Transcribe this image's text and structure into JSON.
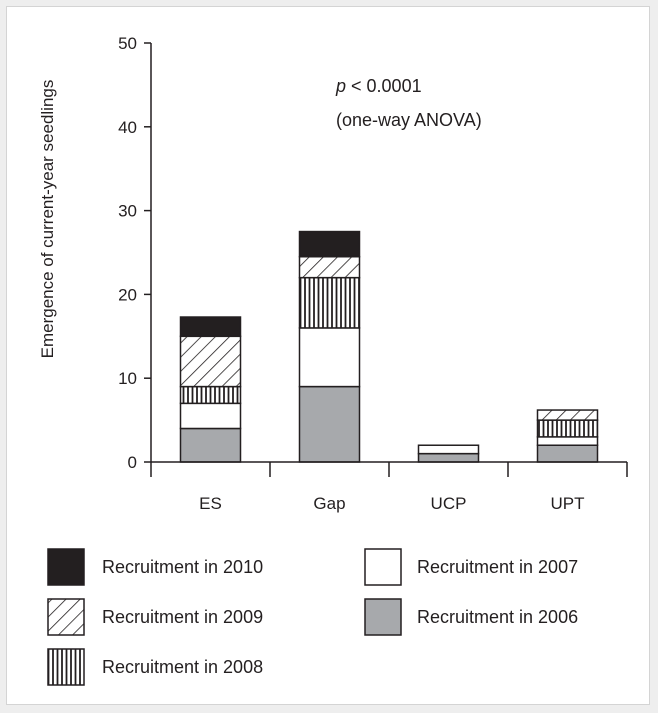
{
  "chart_data": {
    "type": "bar",
    "stacked": true,
    "categories": [
      "ES",
      "Gap",
      "UCP",
      "UPT"
    ],
    "ylabel": "Emergence of current-year seedlings",
    "xlabel": "",
    "ylim": [
      0,
      50
    ],
    "yticks": [
      0,
      10,
      20,
      30,
      40,
      50
    ],
    "grid": false,
    "legend_position": "bottom",
    "annotation": {
      "p_symbol": "p",
      "p_value": " < 0.0001",
      "test": "(one-way ANOVA)"
    },
    "series": [
      {
        "name": "Recruitment in 2006",
        "pattern": "gray",
        "values": [
          4,
          9,
          1,
          2
        ]
      },
      {
        "name": "Recruitment in 2007",
        "pattern": "white",
        "values": [
          3,
          7,
          1,
          1
        ]
      },
      {
        "name": "Recruitment in 2008",
        "pattern": "vertical",
        "values": [
          2,
          6,
          0,
          2
        ]
      },
      {
        "name": "Recruitment in 2009",
        "pattern": "diagonal",
        "values": [
          6,
          2.5,
          0,
          1.2
        ]
      },
      {
        "name": "Recruitment in 2010",
        "pattern": "black",
        "values": [
          2.3,
          3,
          0,
          0
        ]
      }
    ],
    "legend_order": [
      4,
      1,
      3,
      0,
      2
    ],
    "colors": {
      "gray": "#a7a9ac",
      "black": "#231f20",
      "white": "#ffffff",
      "axis": "#231f20"
    }
  }
}
